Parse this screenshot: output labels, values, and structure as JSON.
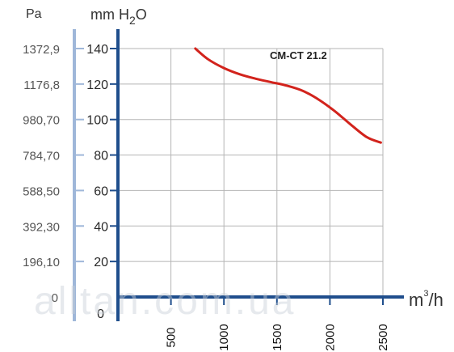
{
  "chart_data": {
    "type": "line",
    "title": "CM-CT 21.2",
    "y_left_label": "Pa",
    "y_right_label_main": "mm H",
    "y_right_label_sub": "2",
    "y_right_label_tail": "O",
    "x_unit_main": "m",
    "x_unit_sup": "3",
    "x_unit_tail": "/h",
    "y_pa_ticks": [
      "0",
      "196,10",
      "392,30",
      "588,50",
      "784,70",
      "980,70",
      "1176,8",
      "1372,9"
    ],
    "y_mm_ticks": [
      "0",
      "20",
      "40",
      "60",
      "80",
      "100",
      "120",
      "140"
    ],
    "x_ticks": [
      "500",
      "1000",
      "1500",
      "2000",
      "2500"
    ],
    "x_tick_values": [
      500,
      1000,
      1500,
      2000,
      2500
    ],
    "xlim": [
      0,
      2500
    ],
    "ylim": [
      0,
      140
    ],
    "grid": true,
    "colors": {
      "axis": "#1f4e8c",
      "pa_axis": "#9fb7d9",
      "curve": "#d2231c",
      "grid": "#b5b5b5"
    },
    "series": [
      {
        "x": [
          730,
          850,
          1000,
          1150,
          1300,
          1450,
          1600,
          1750,
          1900,
          2050,
          2200,
          2350,
          2480
        ],
        "y": [
          140,
          134,
          129,
          125.5,
          123,
          121,
          119,
          116,
          111,
          104.5,
          97,
          90,
          87
        ]
      }
    ]
  },
  "watermark": "alltan.com.ua"
}
